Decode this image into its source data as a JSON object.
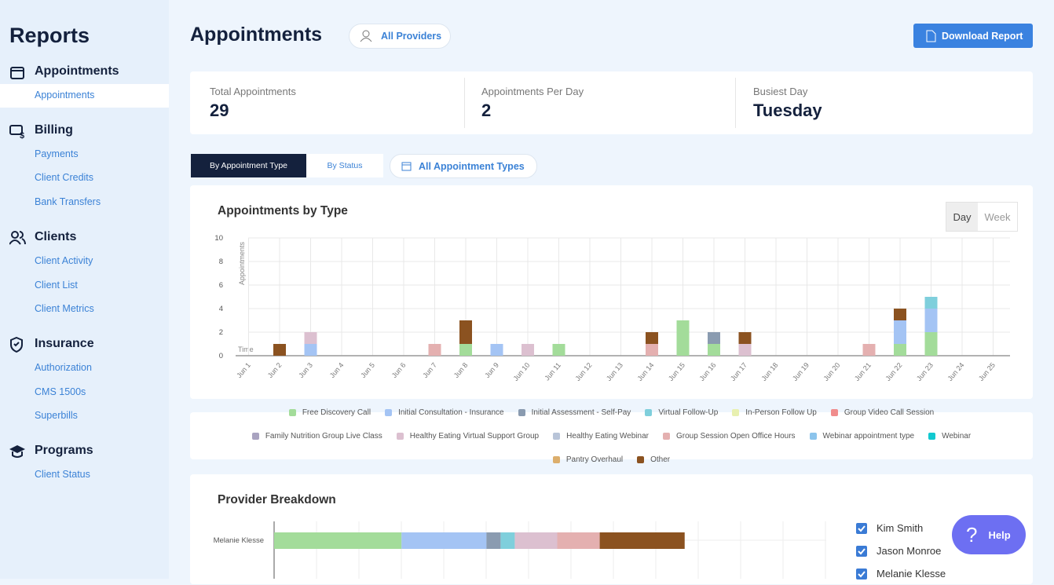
{
  "sidebar": {
    "title": "Reports",
    "sections": [
      {
        "title": "Appointments",
        "items": [
          "Appointments"
        ]
      },
      {
        "title": "Billing",
        "items": [
          "Payments",
          "Client Credits",
          "Bank Transfers"
        ]
      },
      {
        "title": "Clients",
        "items": [
          "Client Activity",
          "Client List",
          "Client Metrics"
        ]
      },
      {
        "title": "Insurance",
        "items": [
          "Authorization",
          "CMS 1500s",
          "Superbills"
        ]
      },
      {
        "title": "Programs",
        "items": [
          "Client Status"
        ]
      }
    ]
  },
  "header": {
    "title": "Appointments",
    "provider_filter": "All Providers",
    "download": "Download Report"
  },
  "stats": [
    {
      "label": "Total Appointments",
      "value": 29
    },
    {
      "label": "Appointments Per Day",
      "value": 2
    },
    {
      "label": "Busiest Day",
      "value": "Tuesday"
    }
  ],
  "tabs": [
    "By Appointment Type",
    "By Status"
  ],
  "type_filter": "All Appointment Types",
  "period_toggle": [
    "Day",
    "Week"
  ],
  "chart_data": [
    {
      "type": "bar",
      "stacked": true,
      "title": "Appointments by Type",
      "y_label": "Appointments",
      "x_label": "Time",
      "categories": [
        "Jun 1",
        "Jun 2",
        "Jun 3",
        "Jun 4",
        "Jun 5",
        "Jun 6",
        "Jun 7",
        "Jun 8",
        "Jun 9",
        "Jun 10",
        "Jun 11",
        "Jun 12",
        "Jun 13",
        "Jun 14",
        "Jun 15",
        "Jun 16",
        "Jun 17",
        "Jun 18",
        "Jun 19",
        "Jun 20",
        "Jun 21",
        "Jun 22",
        "Jun 23",
        "Jun 24",
        "Jun 25"
      ],
      "ylim": [
        0,
        10
      ],
      "yticks": [
        0,
        2,
        4,
        6,
        8,
        10
      ],
      "grid": true,
      "series": [
        {
          "name": "Free Discovery Call",
          "color": "#a3dc9a",
          "values": [
            0,
            0,
            0,
            0,
            0,
            0,
            0,
            1,
            0,
            0,
            1,
            0,
            0,
            0,
            3,
            1,
            0,
            0,
            0,
            0,
            0,
            1,
            2,
            0,
            0
          ]
        },
        {
          "name": "Initial Consultation - Insurance",
          "color": "#a4c4f4",
          "values": [
            0,
            0,
            1,
            0,
            0,
            0,
            0,
            0,
            1,
            0,
            0,
            0,
            0,
            0,
            0,
            0,
            0,
            0,
            0,
            0,
            0,
            2,
            2,
            0,
            0
          ]
        },
        {
          "name": "Initial Assessment - Self-Pay",
          "color": "#8a9bb0",
          "values": [
            0,
            0,
            0,
            0,
            0,
            0,
            0,
            0,
            0,
            0,
            0,
            0,
            0,
            0,
            0,
            1,
            0,
            0,
            0,
            0,
            0,
            0,
            0,
            0,
            0
          ]
        },
        {
          "name": "Virtual Follow-Up",
          "color": "#7fcfdc",
          "values": [
            0,
            0,
            0,
            0,
            0,
            0,
            0,
            0,
            0,
            0,
            0,
            0,
            0,
            0,
            0,
            0,
            0,
            0,
            0,
            0,
            0,
            0,
            1,
            0,
            0
          ]
        },
        {
          "name": "In-Person Follow Up",
          "color": "#e8f0b0",
          "values": [
            0,
            0,
            0,
            0,
            0,
            0,
            0,
            0,
            0,
            0,
            0,
            0,
            0,
            0,
            0,
            0,
            0,
            0,
            0,
            0,
            0,
            0,
            0,
            0,
            0
          ]
        },
        {
          "name": "Group Video Call Session",
          "color": "#f08c8c",
          "values": [
            0,
            0,
            0,
            0,
            0,
            0,
            0,
            0,
            0,
            0,
            0,
            0,
            0,
            0,
            0,
            0,
            0,
            0,
            0,
            0,
            0,
            0,
            0,
            0,
            0
          ]
        },
        {
          "name": "Family Nutrition Group Live Class",
          "color": "#a9a3c0",
          "values": [
            0,
            0,
            0,
            0,
            0,
            0,
            0,
            0,
            0,
            0,
            0,
            0,
            0,
            0,
            0,
            0,
            0,
            0,
            0,
            0,
            0,
            0,
            0,
            0,
            0
          ]
        },
        {
          "name": "Healthy Eating Virtual Support Group",
          "color": "#dcc0d0",
          "values": [
            0,
            0,
            1,
            0,
            0,
            0,
            0,
            0,
            0,
            1,
            0,
            0,
            0,
            0,
            0,
            0,
            1,
            0,
            0,
            0,
            0,
            0,
            0,
            0,
            0
          ]
        },
        {
          "name": "Healthy Eating Webinar",
          "color": "#b8c4d8",
          "values": [
            0,
            0,
            0,
            0,
            0,
            0,
            0,
            0,
            0,
            0,
            0,
            0,
            0,
            0,
            0,
            0,
            0,
            0,
            0,
            0,
            0,
            0,
            0,
            0,
            0
          ]
        },
        {
          "name": "Group Session Open Office Hours",
          "color": "#e4b0b0",
          "values": [
            0,
            0,
            0,
            0,
            0,
            0,
            1,
            0,
            0,
            0,
            0,
            0,
            0,
            1,
            0,
            0,
            0,
            0,
            0,
            0,
            1,
            0,
            0,
            0,
            0
          ]
        },
        {
          "name": "Webinar appointment type",
          "color": "#8cc4ec",
          "values": [
            0,
            0,
            0,
            0,
            0,
            0,
            0,
            0,
            0,
            0,
            0,
            0,
            0,
            0,
            0,
            0,
            0,
            0,
            0,
            0,
            0,
            0,
            0,
            0,
            0
          ]
        },
        {
          "name": "Webinar",
          "color": "#12c9d0",
          "values": [
            0,
            0,
            0,
            0,
            0,
            0,
            0,
            0,
            0,
            0,
            0,
            0,
            0,
            0,
            0,
            0,
            0,
            0,
            0,
            0,
            0,
            0,
            0,
            0,
            0
          ]
        },
        {
          "name": "Pantry Overhaul",
          "color": "#dcae6c",
          "values": [
            0,
            0,
            0,
            0,
            0,
            0,
            0,
            0,
            0,
            0,
            0,
            0,
            0,
            0,
            0,
            0,
            0,
            0,
            0,
            0,
            0,
            0,
            0,
            0,
            0
          ]
        },
        {
          "name": "Other",
          "color": "#8b5220",
          "values": [
            0,
            1,
            0,
            0,
            0,
            0,
            0,
            2,
            0,
            0,
            0,
            0,
            0,
            1,
            0,
            0,
            1,
            0,
            0,
            0,
            0,
            1,
            0,
            0,
            0
          ]
        }
      ]
    },
    {
      "type": "barh",
      "stacked": true,
      "title": "Provider Breakdown",
      "categories": [
        "Melanie Klesse"
      ],
      "xlim": [
        0,
        39
      ],
      "series": [
        {
          "color": "#a3dc9a",
          "values": [
            9
          ]
        },
        {
          "color": "#a4c4f4",
          "values": [
            6
          ]
        },
        {
          "color": "#8a9bb0",
          "values": [
            1
          ]
        },
        {
          "color": "#7fcfdc",
          "values": [
            1
          ]
        },
        {
          "color": "#dcc0d0",
          "values": [
            3
          ]
        },
        {
          "color": "#e4b0b0",
          "values": [
            3
          ]
        },
        {
          "color": "#8b5220",
          "values": [
            6
          ]
        }
      ]
    }
  ],
  "providers": [
    "Kim Smith",
    "Jason Monroe",
    "Melanie Klesse"
  ],
  "help": "Help"
}
